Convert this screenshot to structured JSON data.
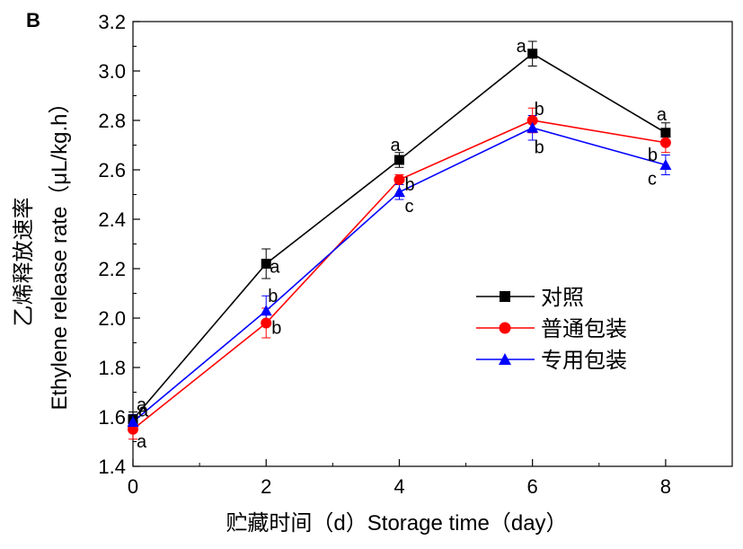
{
  "panel_label": "B",
  "chart_data": {
    "type": "line",
    "xlabel": "贮藏时间（d）Storage time（day）",
    "ylabel_cn": "乙烯释放速率",
    "ylabel_en": "Ethylene release rate（μL/kg.h）",
    "xlim": [
      0,
      9
    ],
    "ylim": [
      1.4,
      3.2
    ],
    "x_ticks": [
      "0",
      "2",
      "4",
      "6",
      "8"
    ],
    "y_ticks": [
      "1.4",
      "1.6",
      "1.8",
      "2.0",
      "2.2",
      "2.4",
      "2.6",
      "2.8",
      "3.0",
      "3.2"
    ],
    "grid": false,
    "legend_position": "right-middle",
    "x": [
      0,
      2,
      4,
      6,
      8
    ],
    "series": [
      {
        "name": "对照",
        "color": "#000000",
        "marker": "square",
        "values": [
          1.59,
          2.22,
          2.64,
          3.07,
          2.75
        ],
        "errors": [
          0.03,
          0.06,
          0.03,
          0.05,
          0.04
        ],
        "letters": [
          "a",
          "a",
          "a",
          "a",
          "a"
        ]
      },
      {
        "name": "普通包装",
        "color": "#ff0000",
        "marker": "circle",
        "values": [
          1.55,
          1.98,
          2.56,
          2.8,
          2.71
        ],
        "errors": [
          0.04,
          0.06,
          0.02,
          0.05,
          0.04
        ],
        "letters": [
          "a",
          "b",
          "b",
          "b",
          "b"
        ]
      },
      {
        "name": "专用包装",
        "color": "#0000ff",
        "marker": "triangle",
        "values": [
          1.58,
          2.03,
          2.51,
          2.77,
          2.62
        ],
        "errors": [
          0.03,
          0.06,
          0.03,
          0.05,
          0.04
        ],
        "letters": [
          "a",
          "b",
          "c",
          "b",
          "c"
        ]
      }
    ]
  }
}
